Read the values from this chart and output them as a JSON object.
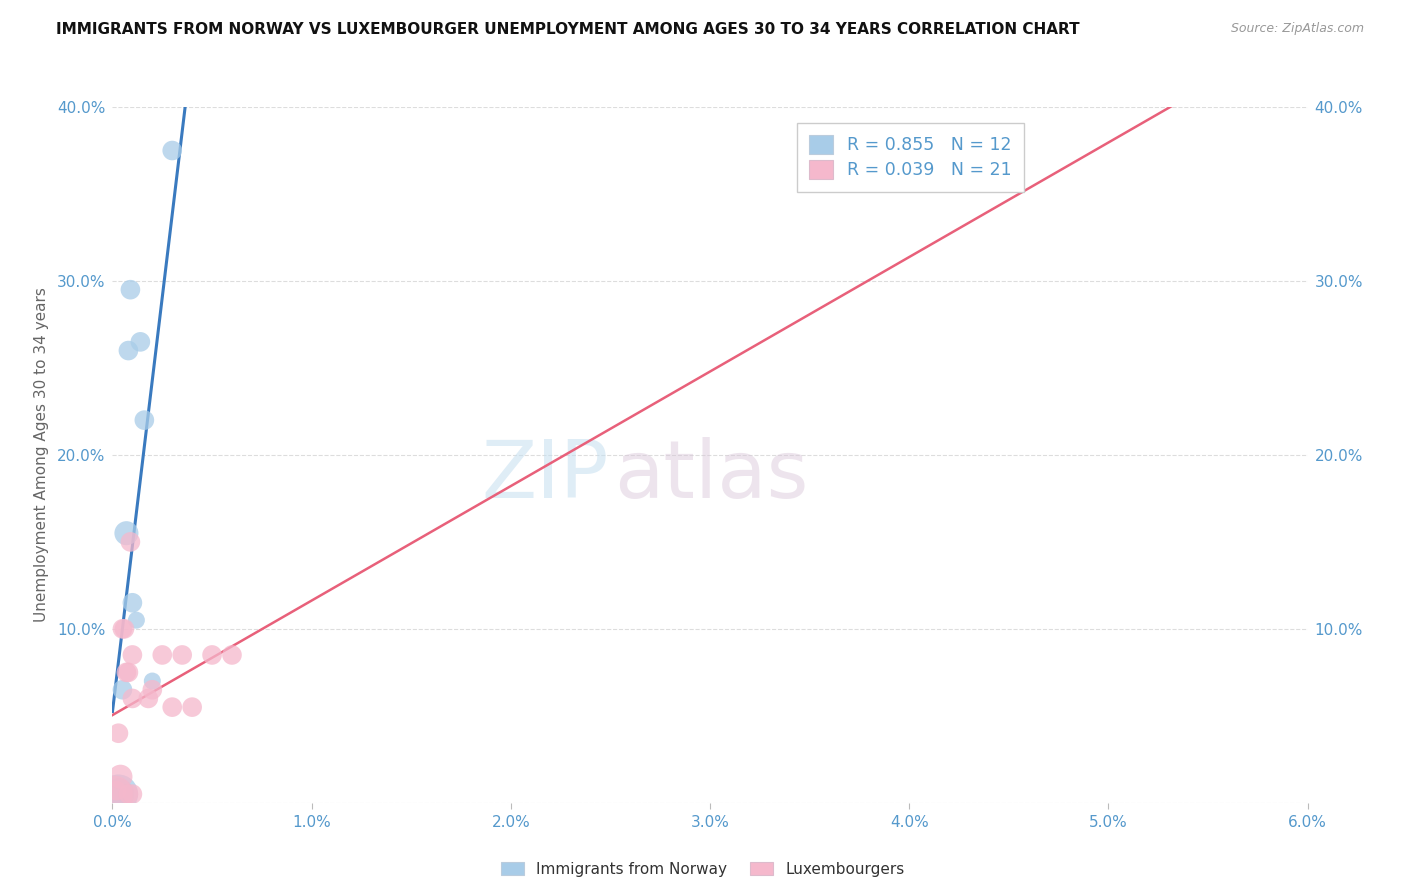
{
  "title": "IMMIGRANTS FROM NORWAY VS LUXEMBOURGER UNEMPLOYMENT AMONG AGES 30 TO 34 YEARS CORRELATION CHART",
  "source": "Source: ZipAtlas.com",
  "ylabel": "Unemployment Among Ages 30 to 34 years",
  "xlim": [
    0.0,
    0.06
  ],
  "ylim": [
    0.0,
    0.4
  ],
  "xtick_vals": [
    0.0,
    0.01,
    0.02,
    0.03,
    0.04,
    0.05,
    0.06
  ],
  "ytick_vals": [
    0.0,
    0.1,
    0.2,
    0.3,
    0.4
  ],
  "norway_scatter_color": "#a8cce8",
  "luxembourger_scatter_color": "#f5b8cc",
  "trendline_norway_color": "#3a7abf",
  "trendline_luxembourger_color": "#e8607a",
  "norway_R": "0.855",
  "norway_N": "12",
  "luxembourger_R": "0.039",
  "luxembourger_N": "21",
  "norway_x": [
    0.0003,
    0.0003,
    0.0005,
    0.0007,
    0.0008,
    0.0009,
    0.001,
    0.0012,
    0.0014,
    0.0016,
    0.002,
    0.003
  ],
  "norway_y": [
    0.005,
    0.005,
    0.065,
    0.155,
    0.26,
    0.295,
    0.115,
    0.105,
    0.265,
    0.22,
    0.07,
    0.375
  ],
  "norway_sizes": [
    800,
    500,
    200,
    300,
    200,
    200,
    200,
    150,
    200,
    200,
    150,
    200
  ],
  "luxembourger_x": [
    0.0001,
    0.0002,
    0.0003,
    0.0004,
    0.0005,
    0.0006,
    0.0007,
    0.0008,
    0.0008,
    0.0009,
    0.001,
    0.001,
    0.001,
    0.0018,
    0.002,
    0.0025,
    0.003,
    0.0035,
    0.004,
    0.005,
    0.006
  ],
  "luxembourger_y": [
    0.005,
    0.007,
    0.04,
    0.015,
    0.1,
    0.1,
    0.075,
    0.075,
    0.005,
    0.15,
    0.085,
    0.06,
    0.005,
    0.06,
    0.065,
    0.085,
    0.055,
    0.085,
    0.055,
    0.085,
    0.085
  ],
  "luxembourger_sizes": [
    700,
    200,
    200,
    300,
    200,
    200,
    200,
    200,
    200,
    200,
    200,
    200,
    200,
    200,
    200,
    200,
    200,
    200,
    200,
    200,
    200
  ],
  "watermark_zip": "ZIP",
  "watermark_atlas": "atlas",
  "background_color": "#ffffff",
  "grid_color": "#dddddd",
  "legend_norway_label": "Immigrants from Norway",
  "legend_lux_label": "Luxembourgers"
}
